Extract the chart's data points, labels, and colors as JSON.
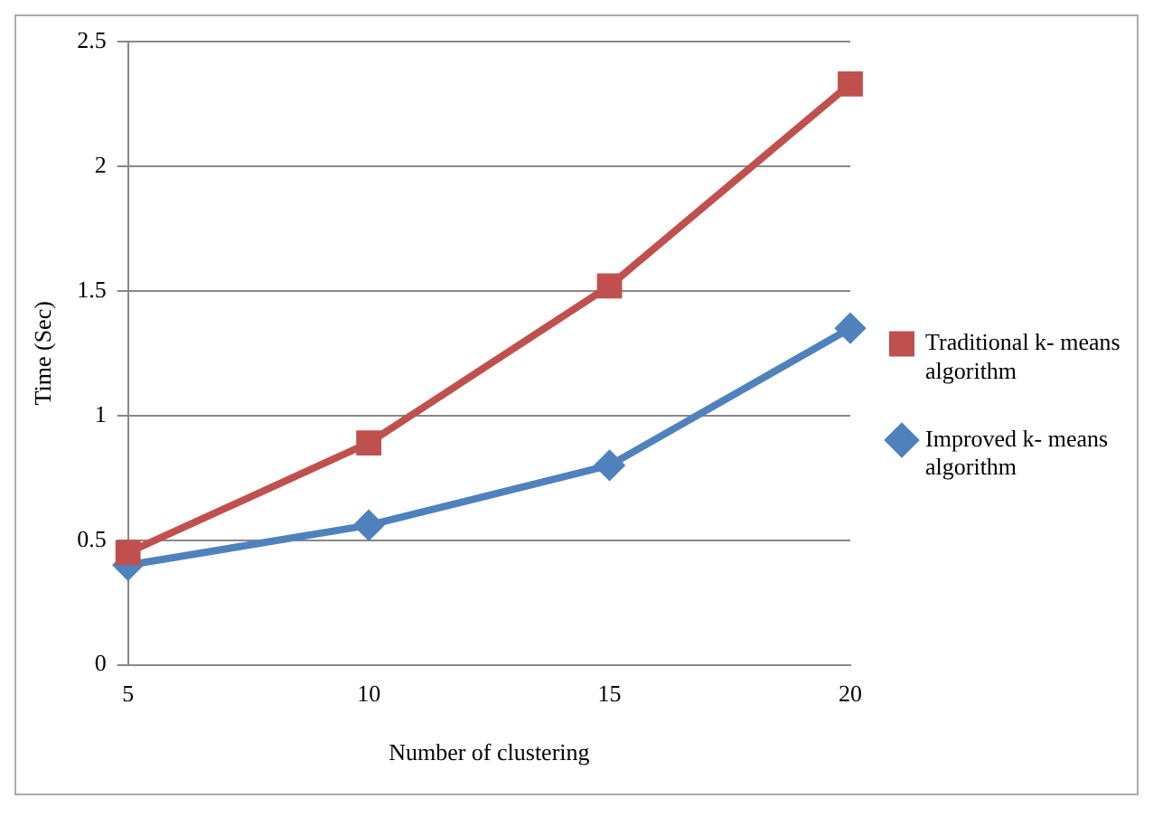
{
  "chart_data": {
    "type": "line",
    "xlabel": "Number of clustering",
    "ylabel": "Time (Sec)",
    "categories": [
      "5",
      "10",
      "15",
      "20"
    ],
    "series": [
      {
        "name": "Traditional k- means algorithm",
        "color": "#c0504d",
        "marker": "square",
        "values": [
          0.45,
          0.89,
          1.52,
          2.33
        ]
      },
      {
        "name": "Improved k- means algorithm",
        "color": "#4f81bd",
        "marker": "diamond",
        "values": [
          0.4,
          0.56,
          0.8,
          1.35
        ]
      }
    ],
    "ylim": [
      0,
      2.5
    ],
    "yticks": [
      0,
      0.5,
      1,
      1.5,
      2,
      2.5
    ],
    "grid": "y",
    "legend": "right"
  }
}
